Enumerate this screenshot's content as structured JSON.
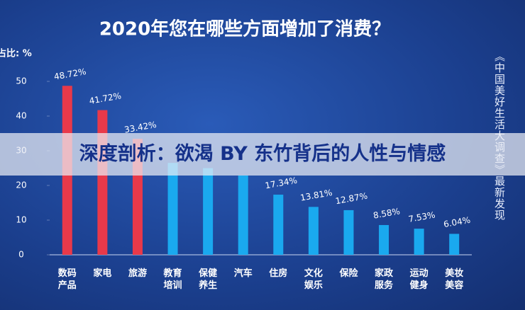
{
  "chart_data": {
    "type": "bar",
    "title": "2020年您在哪些方面增加了消费？",
    "y_label": "占比: %",
    "side_note": "《中国美好生活大调查》最新发现",
    "banner": "深度剖析：欲渴 BY 东竹背后的人性与情感",
    "categories": [
      "数码产品",
      "家电",
      "旅游",
      "教育培训",
      "保健养生",
      "汽车",
      "住房",
      "文化娱乐",
      "保险",
      "家政服务",
      "运动健身",
      "美妆美容"
    ],
    "values": [
      48.72,
      41.72,
      33.42,
      26.5,
      25,
      22.9,
      17.34,
      13.81,
      12.87,
      8.58,
      7.53,
      6.04
    ],
    "value_labels": [
      "48.72%",
      "41.72%",
      "33.42%",
      null,
      null,
      null,
      "17.34%",
      "13.81%",
      "12.87%",
      "8.58%",
      "7.53%",
      "6.04%"
    ],
    "colors": [
      "#e8394a",
      "#e8394a",
      "#e8394a",
      "#1aa9ef",
      "#1aa9ef",
      "#1aa9ef",
      "#1aa9ef",
      "#1aa9ef",
      "#1aa9ef",
      "#1aa9ef",
      "#1aa9ef",
      "#1aa9ef"
    ],
    "ylim": [
      0,
      50
    ],
    "yticks": [
      0,
      10,
      20,
      30,
      40,
      50
    ]
  }
}
